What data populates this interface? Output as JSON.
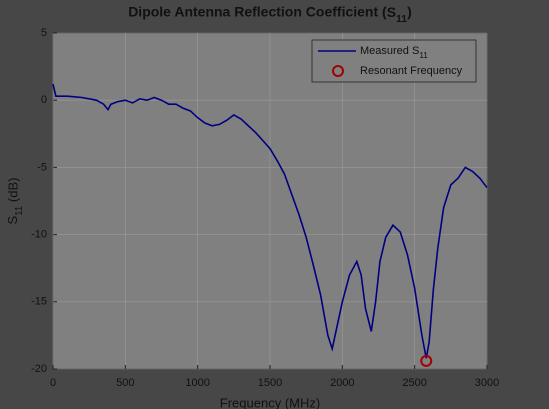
{
  "chart_data": {
    "type": "line",
    "title": "Dipole Antenna Reflection Coefficient (S11)",
    "xlabel": "Frequency (MHz)",
    "ylabel": "S11 (dB)",
    "xlim": [
      0,
      3000
    ],
    "xticks": [
      0,
      500,
      1000,
      1500,
      2000,
      2500,
      3000
    ],
    "ylim": [
      -20,
      5
    ],
    "yticks": [
      -20,
      -15,
      -10,
      -5,
      0,
      5
    ],
    "grid": true,
    "legend": "upper right",
    "series": [
      {
        "name": "Measured S11",
        "color": "#000080",
        "kind": "line",
        "x": [
          0,
          20,
          100,
          200,
          300,
          350,
          380,
          400,
          450,
          500,
          550,
          600,
          650,
          700,
          750,
          800,
          850,
          900,
          950,
          1000,
          1050,
          1100,
          1150,
          1200,
          1250,
          1300,
          1350,
          1400,
          1450,
          1500,
          1550,
          1600,
          1650,
          1700,
          1750,
          1800,
          1850,
          1900,
          1930,
          1960,
          2000,
          2050,
          2100,
          2130,
          2160,
          2200,
          2230,
          2260,
          2300,
          2350,
          2400,
          2450,
          2500,
          2550,
          2580,
          2600,
          2630,
          2660,
          2700,
          2750,
          2800,
          2850,
          2900,
          2950,
          3000
        ],
        "values": [
          1.2,
          0.3,
          0.3,
          0.2,
          0,
          -0.3,
          -0.7,
          -0.3,
          -0.1,
          0,
          -0.2,
          0.1,
          0,
          0.2,
          0,
          -0.3,
          -0.3,
          -0.6,
          -0.8,
          -1.3,
          -1.7,
          -1.9,
          -1.8,
          -1.5,
          -1.1,
          -1.4,
          -1.9,
          -2.4,
          -3.0,
          -3.6,
          -4.5,
          -5.5,
          -7.0,
          -8.5,
          -10.2,
          -12.3,
          -14.5,
          -17.5,
          -18.5,
          -17,
          -15,
          -13,
          -12.0,
          -13,
          -15.5,
          -17.2,
          -15,
          -12,
          -10.2,
          -9.3,
          -9.8,
          -11.5,
          -14,
          -17.5,
          -19.2,
          -18,
          -14,
          -11,
          -8,
          -6.3,
          -5.8,
          -5.0,
          -5.3,
          -5.8,
          -6.5
        ]
      },
      {
        "name": "Resonant Frequency",
        "color": "#a00000",
        "kind": "marker",
        "x": [
          2580
        ],
        "values": [
          -19.4
        ]
      }
    ]
  }
}
